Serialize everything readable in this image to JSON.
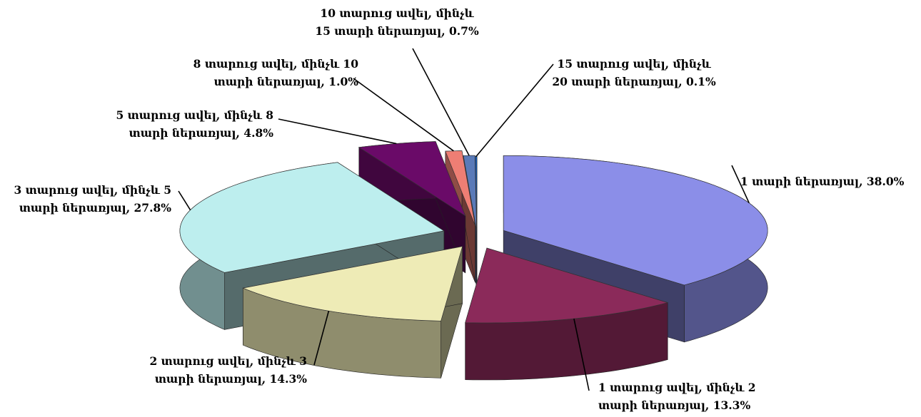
{
  "chart_data": {
    "type": "pie",
    "title": "",
    "style": "3d-exploded",
    "slices": [
      {
        "label_lines": [
          "1 տարի ներառյալ, 38.0%"
        ],
        "value": 38.0,
        "color": "#8b8ee8"
      },
      {
        "label_lines": [
          "1 տարուց ավել, մինչև 2",
          "տարի ներառյալ, 13.3%"
        ],
        "value": 13.3,
        "color": "#8b2a5a"
      },
      {
        "label_lines": [
          "2 տարուց ավել, մինչև 3",
          "տարի ներառյալ, 14.3%"
        ],
        "value": 14.3,
        "color": "#eeebb6"
      },
      {
        "label_lines": [
          "3 տարուց ավել, մինչև 5",
          "տարի ներառյալ, 27.8%"
        ],
        "value": 27.8,
        "color": "#bdeeee"
      },
      {
        "label_lines": [
          "5 տարուց ավել, մինչև 8",
          "տարի ներառյալ, 4.8%"
        ],
        "value": 4.8,
        "color": "#6a0a68"
      },
      {
        "label_lines": [
          "8 տարուց ավել, մինչև 10",
          "տարի ներառյալ, 1.0%"
        ],
        "value": 1.0,
        "color": "#ee7e74"
      },
      {
        "label_lines": [
          "10 տարուց ավել, մինչև",
          "15 տարի ներառյալ, 0.7%"
        ],
        "value": 0.7,
        "color": "#5a7ab8"
      },
      {
        "label_lines": [
          "15 տարուց ավել, մինչև",
          "20 տարի ներառյալ, 0.1%"
        ],
        "value": 0.1,
        "color": "#1060c8"
      }
    ]
  }
}
